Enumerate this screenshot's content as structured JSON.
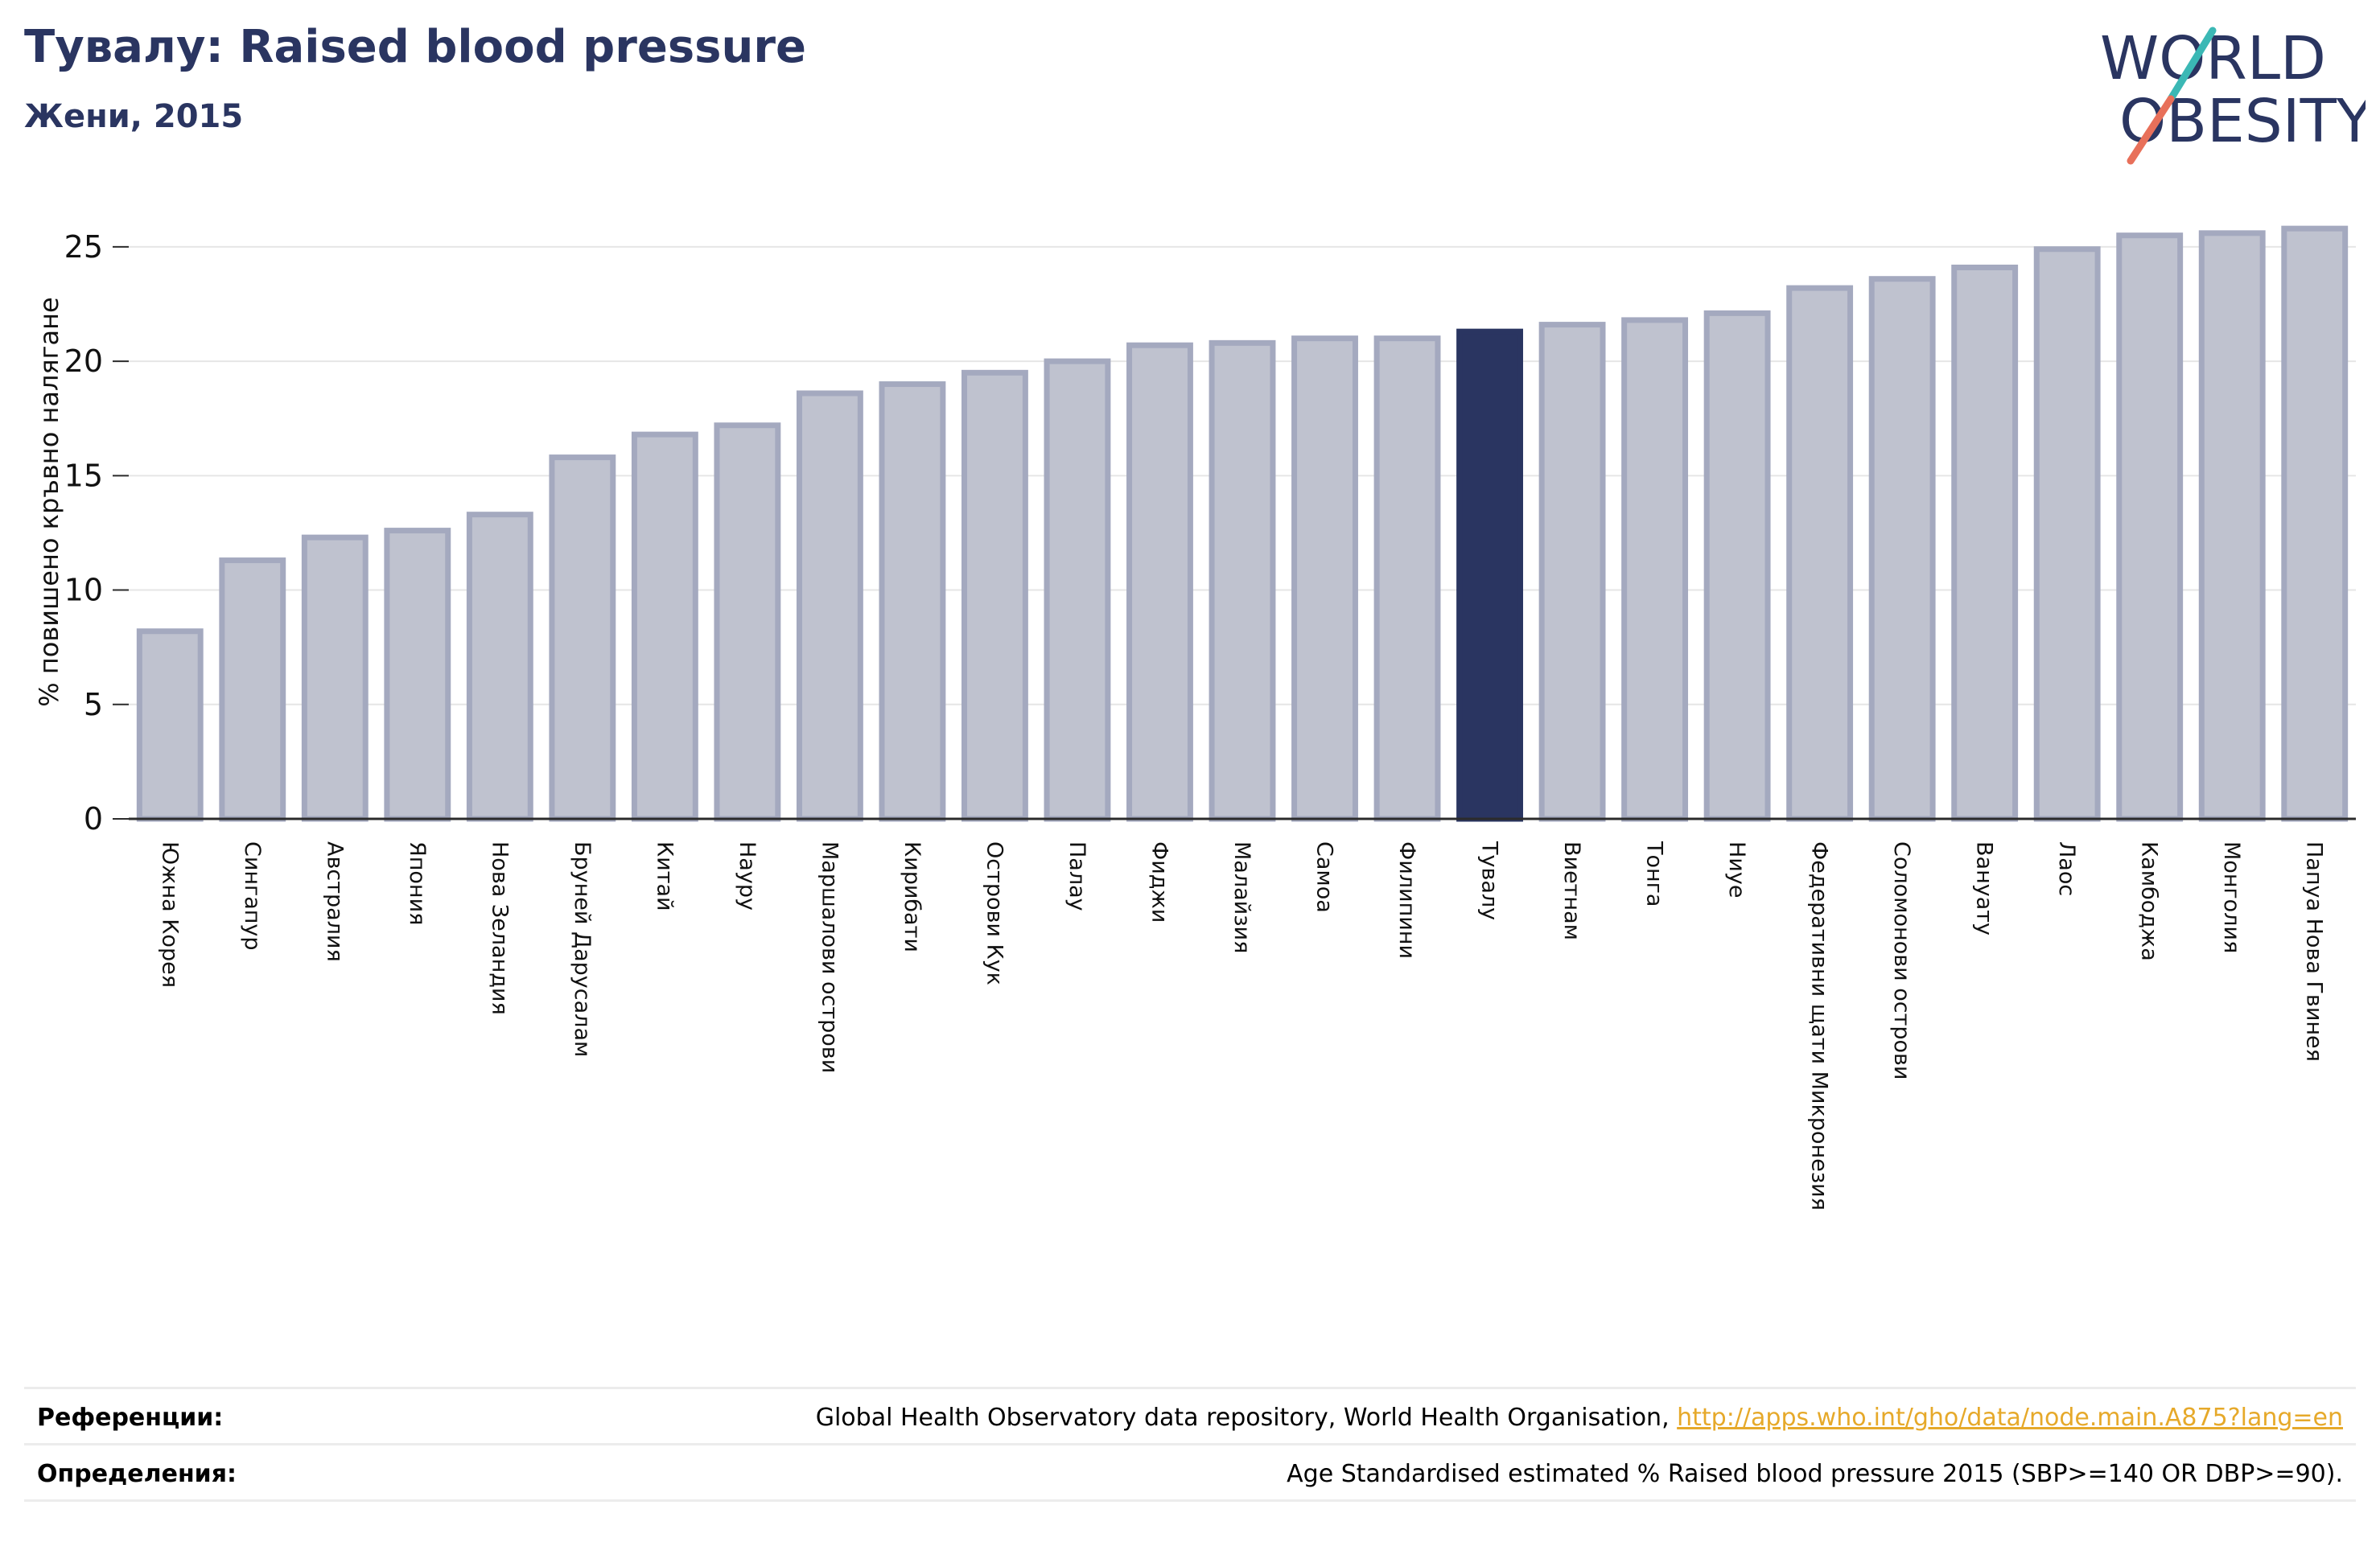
{
  "header": {
    "title": "Тувалу: Raised blood pressure",
    "subtitle": "Жени, 2015"
  },
  "logo": {
    "line1": "WORLD",
    "line2": "OBESITY",
    "colors": {
      "text": "#2a3561",
      "slash_top": "#3bb8b5",
      "slash_bottom": "#e8705a"
    }
  },
  "colors": {
    "bar_fill": "#bfc2cf",
    "bar_stroke": "#a4a9bf",
    "highlight": "#2a3561",
    "grid": "#e6e6e6",
    "axis": "#2b2b2b"
  },
  "chart_data": {
    "type": "bar",
    "title": "",
    "xlabel": "",
    "ylabel": "% повишено кръвно налягане",
    "ylim": [
      0,
      27
    ],
    "yticks": [
      0,
      5,
      10,
      15,
      20,
      25
    ],
    "grid": true,
    "highlight_category": "Тувалу",
    "categories": [
      "Южна Корея",
      "Сингапур",
      "Австралия",
      "Япония",
      "Нова Зеландия",
      "Бруней Дарусалам",
      "Китай",
      "Науру",
      "Маршалови острови",
      "Кирибати",
      "Острови Кук",
      "Палау",
      "Фиджи",
      "Малайзия",
      "Самоа",
      "Филипини",
      "Тувалу",
      "Виетнам",
      "Тонга",
      "Ниуе",
      "Федеративни щати Микронезия",
      "Соломонови острови",
      "Вануату",
      "Лаос",
      "Камбоджа",
      "Монголия",
      "Папуа Нова Гвинея"
    ],
    "values": [
      8.2,
      11.3,
      12.3,
      12.6,
      13.3,
      15.8,
      16.8,
      17.2,
      18.6,
      19.0,
      19.5,
      20.0,
      20.7,
      20.8,
      21.0,
      21.0,
      21.3,
      21.6,
      21.8,
      22.1,
      23.2,
      23.6,
      24.1,
      24.9,
      25.5,
      25.6,
      25.8
    ]
  },
  "references": {
    "refs_label": "Референции:",
    "refs_text": "Global Health Observatory data repository, World Health Organisation, ",
    "refs_link": "http://apps.who.int/gho/data/node.main.A875?lang=en",
    "defs_label": "Определения:",
    "defs_text": "Age Standardised estimated % Raised blood pressure 2015 (SBP>=140 OR DBP>=90)."
  }
}
